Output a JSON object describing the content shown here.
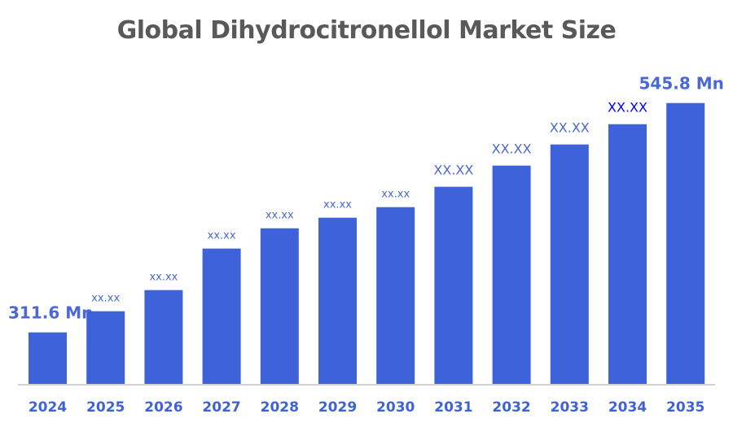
{
  "chart_data": {
    "type": "bar",
    "title": "Global Dihydrocitronellol Market Size",
    "xlabel": "",
    "ylabel": "",
    "categories": [
      "2024",
      "2025",
      "2026",
      "2027",
      "2028",
      "2029",
      "2030",
      "2031",
      "2032",
      "2033",
      "2034",
      "2035"
    ],
    "values": [
      311.6,
      333.2,
      354.8,
      397.2,
      417.9,
      428.7,
      439.5,
      460.3,
      481.9,
      503.5,
      524.2,
      545.8
    ],
    "data_labels": [
      "311.6 Mn",
      "xx.xx",
      "xx.xx",
      "xx.xx",
      "xx.xx",
      "xx.xx",
      "xx.xx",
      "XX.XX",
      "XX.XX",
      "XX.XX",
      "XX.XX",
      "545.8 Mn"
    ],
    "ylim": [
      259,
      560
    ],
    "grid": false,
    "legend": "none",
    "bar_color": "#3d62d9",
    "label_color": "#4a68d8",
    "highlight_label_color": "#0000ff",
    "year_label_color": "#3d62d9",
    "title_color": "#595959"
  }
}
